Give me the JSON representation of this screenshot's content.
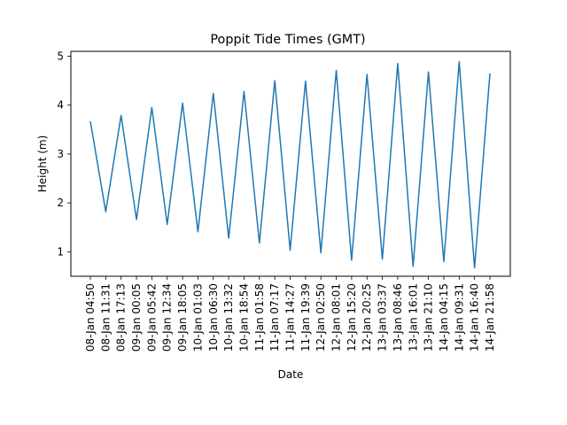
{
  "chart_data": {
    "type": "line",
    "title": "Poppit Tide Times (GMT)",
    "xlabel": "Date",
    "ylabel": "Height (m)",
    "ylim": [
      0.5,
      5.1
    ],
    "yticks": [
      1,
      2,
      3,
      4,
      5
    ],
    "grid": false,
    "line_color": "#1f77b4",
    "x": [
      "08-Jan 04:50",
      "08-Jan 11:31",
      "08-Jan 17:13",
      "09-Jan 00:05",
      "09-Jan 05:42",
      "09-Jan 12:34",
      "09-Jan 18:05",
      "10-Jan 01:03",
      "10-Jan 06:30",
      "10-Jan 13:32",
      "10-Jan 18:54",
      "11-Jan 01:58",
      "11-Jan 07:17",
      "11-Jan 14:27",
      "11-Jan 19:39",
      "12-Jan 02:50",
      "12-Jan 08:01",
      "12-Jan 15:20",
      "12-Jan 20:25",
      "13-Jan 03:37",
      "13-Jan 08:46",
      "13-Jan 16:01",
      "13-Jan 21:10",
      "14-Jan 04:15",
      "14-Jan 09:31",
      "14-Jan 16:40",
      "14-Jan 21:58"
    ],
    "values": [
      3.67,
      1.82,
      3.79,
      1.66,
      3.95,
      1.56,
      4.04,
      1.41,
      4.24,
      1.28,
      4.28,
      1.18,
      4.5,
      1.03,
      4.49,
      0.98,
      4.71,
      0.83,
      4.63,
      0.85,
      4.85,
      0.7,
      4.68,
      0.8,
      4.89,
      0.67,
      4.65
    ]
  }
}
